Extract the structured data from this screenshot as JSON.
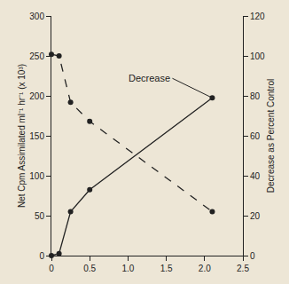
{
  "chart_data": {
    "type": "line",
    "y_label": "Net Cpm Assimilated ml⁻¹ hr⁻¹ (x 10³)",
    "y2_label": "Decrease as Percent Control",
    "series": [
      {
        "x": [
          0,
          0.1,
          0.25,
          0.5,
          2.1
        ],
        "values": [
          252,
          250,
          192,
          168,
          55
        ],
        "color": "#222222",
        "line_style": "dashed",
        "marker": "circle"
      },
      {
        "name": "Decrease",
        "axis": "y2",
        "x": [
          0,
          0.1,
          0.25,
          0.5,
          2.1
        ],
        "values": [
          0,
          1,
          22,
          33,
          79
        ],
        "color": "#222222",
        "line_style": "solid",
        "marker": "circle"
      }
    ],
    "xlim": [
      0,
      2.5
    ],
    "xticks": [
      0,
      0.5,
      {
        "value": 1,
        "label": "1.0"
      },
      1.5,
      {
        "value": 2,
        "label": "2.0"
      },
      2.5
    ],
    "ylim": [
      0,
      300
    ],
    "yticks": [
      0,
      50,
      100,
      150,
      200,
      250,
      300
    ],
    "y2lim": [
      0,
      120
    ],
    "y2ticks": [
      0,
      20,
      40,
      60,
      80,
      100,
      120
    ],
    "grid": false
  }
}
